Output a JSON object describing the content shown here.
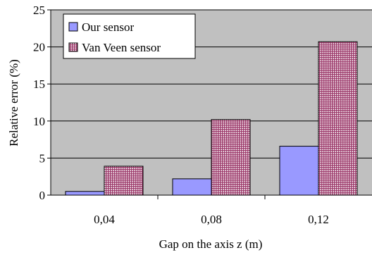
{
  "chart_data": {
    "type": "bar",
    "categories": [
      "0,04",
      "0,08",
      "0,12"
    ],
    "series": [
      {
        "name": "Our sensor",
        "values": [
          0.5,
          2.2,
          6.6
        ],
        "color": "#9999ff",
        "pattern": "solid"
      },
      {
        "name": "Van Veen sensor",
        "values": [
          3.9,
          10.2,
          20.7
        ],
        "color": "#993366",
        "pattern": "grid"
      }
    ],
    "title": "",
    "xlabel": "Gap on the axis z (m)",
    "ylabel": "Relative error (%)",
    "ylim": [
      0,
      25
    ],
    "yticks": [
      "0",
      "5",
      "10",
      "15",
      "20",
      "25"
    ],
    "grid": true,
    "plot_background": "#c0c0c0",
    "legend_position": "top-left"
  }
}
